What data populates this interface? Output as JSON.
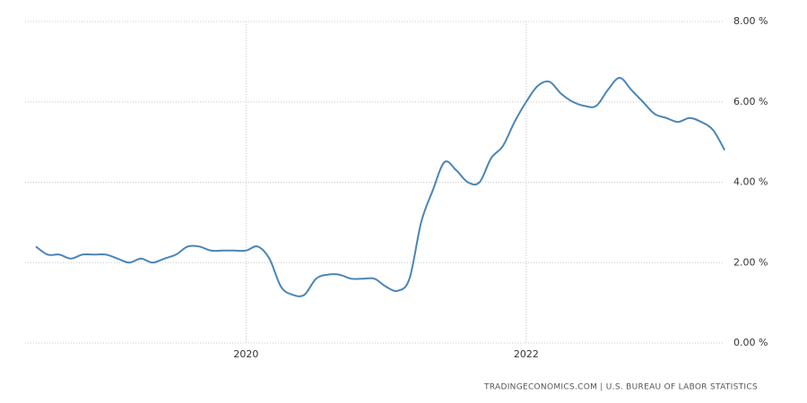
{
  "chart_data": {
    "type": "line",
    "categories": [
      null,
      null,
      null,
      null,
      null,
      null,
      null,
      null,
      null,
      null,
      null,
      null,
      null,
      null,
      null,
      null,
      null,
      null,
      "2020",
      null,
      null,
      null,
      null,
      null,
      null,
      null,
      null,
      null,
      null,
      null,
      null,
      null,
      null,
      null,
      null,
      null,
      null,
      null,
      null,
      null,
      null,
      null,
      "2022",
      null,
      null,
      null,
      null,
      null,
      null,
      null,
      null,
      null,
      null,
      null,
      null,
      null,
      null,
      null,
      null,
      null
    ],
    "series": [
      {
        "color": "#4a85b7",
        "values": [
          2.4,
          2.2,
          2.2,
          2.1,
          2.2,
          2.2,
          2.2,
          2.1,
          2.0,
          2.1,
          2.0,
          2.1,
          2.2,
          2.4,
          2.4,
          2.3,
          2.3,
          2.3,
          2.3,
          2.4,
          2.1,
          1.4,
          1.2,
          1.2,
          1.6,
          1.7,
          1.7,
          1.6,
          1.6,
          1.6,
          1.4,
          1.3,
          1.6,
          3.0,
          3.8,
          4.5,
          4.3,
          4.0,
          4.0,
          4.6,
          4.9,
          5.5,
          6.0,
          6.4,
          6.5,
          6.2,
          6.0,
          5.9,
          5.9,
          6.3,
          6.6,
          6.3,
          6.0,
          5.7,
          5.6,
          5.5,
          5.6,
          5.5,
          5.3,
          4.8
        ]
      }
    ],
    "ylim": [
      0,
      8
    ],
    "yticks": [
      {
        "value": 0,
        "label": "0.00 %"
      },
      {
        "value": 2,
        "label": "2.00 %"
      },
      {
        "value": 4,
        "label": "4.00 %"
      },
      {
        "value": 6,
        "label": "6.00 %"
      },
      {
        "value": 8,
        "label": "8.00 %"
      }
    ],
    "grid": true,
    "source": "TRADINGECONOMICS.COM  |  U.S. BUREAU OF LABOR STATISTICS"
  }
}
